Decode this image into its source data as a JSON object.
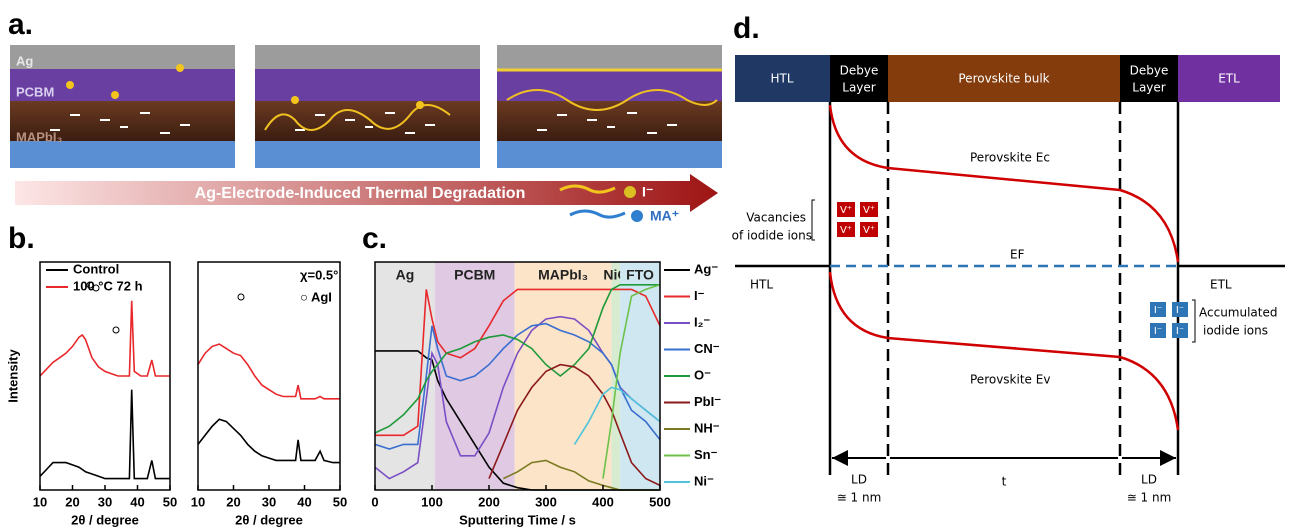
{
  "figure": {
    "panel_labels": [
      "a.",
      "b.",
      "c.",
      "d."
    ],
    "panel_a": {
      "layers": [
        "Ag",
        "PCBM",
        "MAPbI₃"
      ],
      "arrow_text": "Ag-Electrode-Induced Thermal Degradation",
      "legend": [
        "I⁻",
        "MA⁺"
      ]
    },
    "panel_d": {
      "htl": "HTL",
      "debye": [
        "Debye",
        "Layer"
      ],
      "bulk": "Perovskite bulk",
      "etl": "ETL",
      "ec": "Perovskite Ec",
      "ev": "Perovskite Ev",
      "ef": "EF",
      "left": "HTL",
      "right": "ETL",
      "vacancies": [
        "Vacancies",
        "of iodide ions"
      ],
      "v_ion": "V⁺",
      "accumulated": [
        "Accumulated",
        "iodide ions"
      ],
      "i_ion": "I⁻",
      "ld": "LD",
      "t": "t",
      "nm": "≅ 1 nm"
    }
  },
  "chart_data": [
    {
      "type": "line",
      "x_label": "2θ / degree",
      "y_label": "Intensity",
      "x": [
        10,
        12,
        14,
        16,
        18,
        20,
        22,
        23,
        24,
        26,
        28,
        30,
        32,
        34,
        36,
        37.5,
        38.2,
        39,
        41,
        43,
        44.4,
        45.5,
        48,
        50
      ],
      "xlim": [
        10,
        50
      ],
      "xticks": [
        10,
        20,
        30,
        40,
        50
      ],
      "ylim": [
        0,
        100
      ],
      "series": [
        {
          "name": "Control",
          "color": "#000000",
          "values": [
            6,
            9,
            12,
            12,
            12,
            11,
            10,
            9,
            8,
            7,
            6,
            5,
            5,
            5,
            5,
            5,
            44,
            5,
            5,
            5,
            13,
            5,
            5,
            5
          ]
        },
        {
          "name": "100 °C 72 h",
          "color": "#e8282b",
          "values": [
            50,
            53,
            56,
            58,
            60,
            63,
            67,
            68,
            66,
            58,
            54,
            52,
            51,
            50,
            50,
            50,
            83,
            52,
            50,
            50,
            57,
            50,
            50,
            50
          ]
        }
      ]
    },
    {
      "type": "line",
      "x_label": "2θ / degree",
      "annotations": [
        "χ=0.5°",
        "○ AgI"
      ],
      "x": [
        10,
        12,
        14,
        16,
        18,
        20,
        22,
        24,
        26,
        28,
        30,
        32,
        34,
        36,
        37.5,
        38.2,
        39,
        41,
        43,
        44.4,
        45.5,
        48,
        50
      ],
      "xlim": [
        10,
        50
      ],
      "xticks": [
        10,
        20,
        30,
        40,
        50
      ],
      "ylim": [
        0,
        100
      ],
      "series": [
        {
          "color": "#000000",
          "values": [
            20,
            24,
            28,
            31,
            30,
            27,
            24,
            20,
            17,
            15,
            14,
            13,
            13,
            13,
            13,
            22,
            13,
            13,
            13,
            17,
            13,
            12,
            12
          ]
        },
        {
          "color": "#e8282b",
          "values": [
            55,
            60,
            63,
            64,
            62,
            60,
            59,
            55,
            50,
            46,
            44,
            42,
            41,
            41,
            41,
            46,
            40,
            40,
            40,
            41,
            40,
            40,
            40
          ]
        }
      ]
    },
    {
      "type": "line",
      "x_label": "Sputtering Time / s",
      "regions": [
        {
          "label": "Ag",
          "start": 0,
          "end": 105,
          "color": "#e4e4e4"
        },
        {
          "label": "PCBM",
          "start": 105,
          "end": 245,
          "color": "#dfc9e3"
        },
        {
          "label": "MAPbI₃",
          "start": 245,
          "end": 415,
          "color": "#fbe4c8"
        },
        {
          "label": "NiO",
          "start": 415,
          "end": 430,
          "color": "#d6ebcf"
        },
        {
          "label": "FTO",
          "start": 430,
          "end": 500,
          "color": "#cfe7f0"
        }
      ],
      "x": [
        0,
        25,
        50,
        75,
        90,
        100,
        110,
        125,
        150,
        175,
        200,
        225,
        250,
        275,
        300,
        325,
        350,
        375,
        400,
        415,
        430,
        450,
        475,
        500
      ],
      "xlim": [
        0,
        500
      ],
      "xticks": [
        0,
        100,
        200,
        300,
        400,
        500
      ],
      "ylim": [
        0,
        100
      ],
      "series": [
        {
          "name": "Ag⁻",
          "color": "#000000",
          "values": [
            61,
            61,
            61,
            61,
            58,
            57,
            48,
            40,
            30,
            20,
            10,
            3,
            1,
            0,
            0,
            0,
            0,
            0,
            0,
            0,
            0,
            0,
            0,
            0
          ]
        },
        {
          "name": "I⁻",
          "color": "#e8282b",
          "values": [
            24,
            24,
            24,
            28,
            88,
            75,
            65,
            60,
            58,
            62,
            72,
            83,
            88,
            88,
            88,
            88,
            88,
            88,
            88,
            88,
            88,
            88,
            85,
            72
          ]
        },
        {
          "name": "I₂⁻",
          "color": "#7b4fc4",
          "values": [
            10,
            5,
            8,
            12,
            40,
            60,
            55,
            30,
            15,
            15,
            25,
            45,
            60,
            70,
            75,
            76,
            75,
            70,
            60,
            55,
            45,
            40,
            35,
            30
          ]
        },
        {
          "name": "CN⁻",
          "color": "#3a6fd0",
          "values": [
            20,
            18,
            20,
            20,
            50,
            72,
            62,
            50,
            48,
            50,
            55,
            62,
            68,
            72,
            73,
            70,
            68,
            65,
            60,
            55,
            45,
            35,
            30,
            22
          ]
        },
        {
          "name": "O⁻",
          "color": "#1e9a3a",
          "values": [
            25,
            28,
            33,
            40,
            48,
            52,
            55,
            60,
            62,
            65,
            67,
            68,
            66,
            62,
            55,
            50,
            55,
            62,
            80,
            88,
            90,
            90,
            90,
            90
          ]
        },
        {
          "name": "PbI⁻",
          "color": "#8b1a1a",
          "values": [
            null,
            null,
            null,
            null,
            null,
            null,
            null,
            null,
            null,
            null,
            5,
            20,
            35,
            45,
            52,
            55,
            54,
            50,
            42,
            35,
            25,
            12,
            5,
            2
          ]
        },
        {
          "name": "NH⁻",
          "color": "#7a7a20",
          "values": [
            null,
            null,
            null,
            null,
            null,
            null,
            null,
            null,
            null,
            null,
            null,
            5,
            8,
            12,
            13,
            10,
            8,
            4,
            2,
            1,
            0,
            0,
            0,
            0
          ]
        },
        {
          "name": "Sn⁻",
          "color": "#6cc24a",
          "values": [
            null,
            null,
            null,
            null,
            null,
            null,
            null,
            null,
            null,
            null,
            null,
            null,
            null,
            null,
            null,
            null,
            null,
            null,
            5,
            30,
            60,
            85,
            88,
            90
          ]
        },
        {
          "name": "Ni⁻",
          "color": "#4fc3dc",
          "values": [
            null,
            null,
            null,
            null,
            null,
            null,
            null,
            null,
            null,
            null,
            null,
            null,
            null,
            null,
            null,
            null,
            20,
            30,
            42,
            45,
            44,
            40,
            35,
            30
          ]
        }
      ]
    }
  ]
}
